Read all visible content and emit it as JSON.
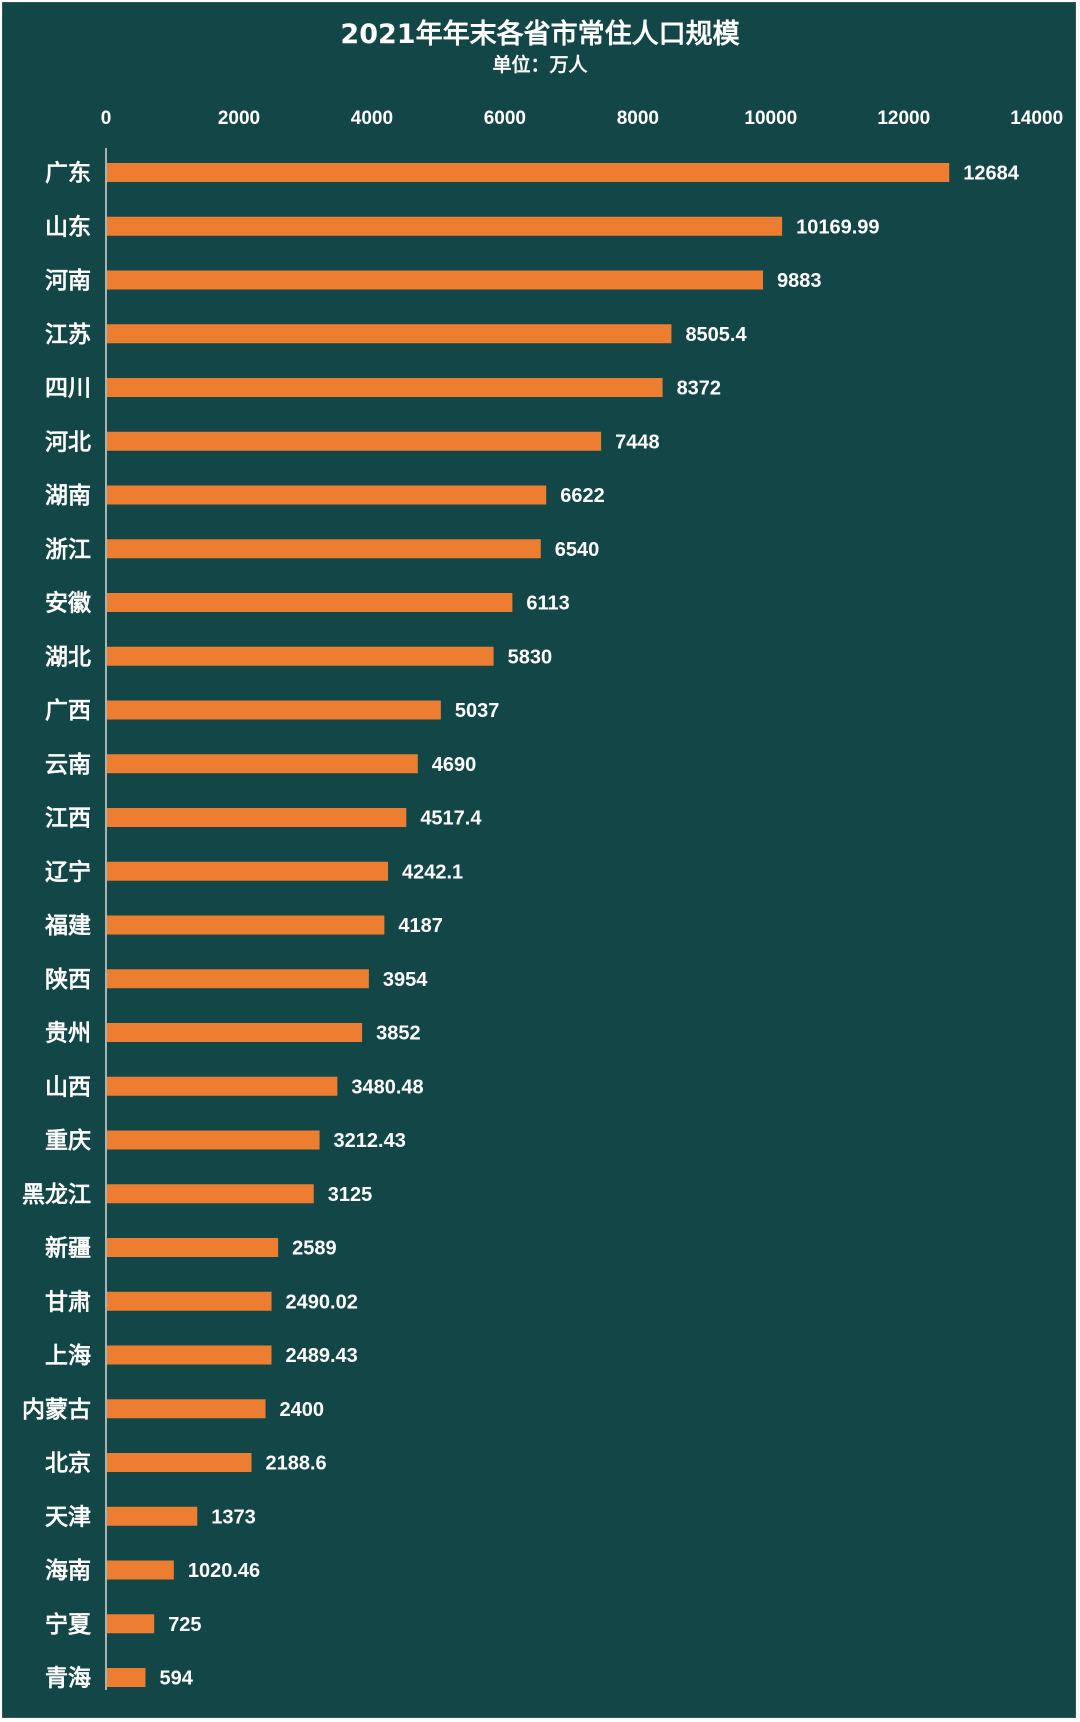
{
  "chart_data": {
    "type": "bar",
    "orientation": "horizontal",
    "title": "2021年年末各省市常住人口规模",
    "subtitle": "单位：万人",
    "xlabel": "",
    "ylabel": "",
    "xlim": [
      0,
      14000
    ],
    "ticks": [
      0,
      2000,
      4000,
      6000,
      8000,
      10000,
      12000,
      14000
    ],
    "tick_labels": [
      "0",
      "2000",
      "4000",
      "6000",
      "8000",
      "10000",
      "12000",
      "14000"
    ],
    "axis_position": "top",
    "grid": false,
    "legend": "none",
    "categories": [
      "广东",
      "山东",
      "河南",
      "江苏",
      "四川",
      "河北",
      "湖南",
      "浙江",
      "安徽",
      "湖北",
      "广西",
      "云南",
      "江西",
      "辽宁",
      "福建",
      "陕西",
      "贵州",
      "山西",
      "重庆",
      "黑龙江",
      "新疆",
      "甘肃",
      "上海",
      "内蒙古",
      "北京",
      "天津",
      "海南",
      "宁夏",
      "青海"
    ],
    "values": [
      12684,
      10169.99,
      9883,
      8505.4,
      8372,
      7448,
      6622,
      6540,
      6113,
      5830,
      5037,
      4690,
      4517.4,
      4242.1,
      4187,
      3954,
      3852,
      3480.48,
      3212.43,
      3125,
      2589,
      2490.02,
      2489.43,
      2400,
      2188.6,
      1373,
      1020.46,
      725,
      594
    ],
    "value_labels": [
      "12684",
      "10169.99",
      "9883",
      "8505.4",
      "8372",
      "7448",
      "6622",
      "6540",
      "6113",
      "5830",
      "5037",
      "4690",
      "4517.4",
      "4242.1",
      "4187",
      "3954",
      "3852",
      "3480.48",
      "3212.43",
      "3125",
      "2589",
      "2490.02",
      "2489.43",
      "2400",
      "2188.6",
      "1373",
      "1020.46",
      "725",
      "594"
    ]
  },
  "colors": {
    "background": "#134747",
    "bar": "#ED7D31",
    "text": "#ffffff",
    "axis": "#d9d9d9"
  }
}
